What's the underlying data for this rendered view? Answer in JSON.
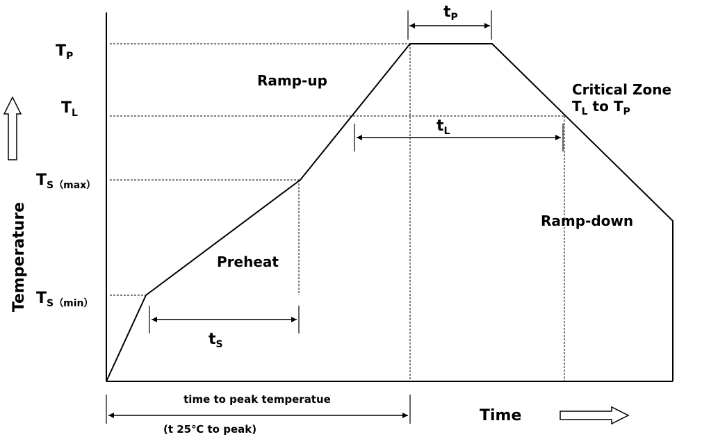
{
  "axes": {
    "y_label": "Temperature",
    "x_label": "Time"
  },
  "levels": {
    "tp": {
      "main": "T",
      "sub": "P"
    },
    "tl": {
      "main": "T",
      "sub": "L"
    },
    "ts_max": {
      "main": "T",
      "sub": "S",
      "suffix": "（max）"
    },
    "ts_min": {
      "main": "T",
      "sub": "S",
      "suffix": "（min）"
    }
  },
  "zones": {
    "ramp_up": "Ramp-up",
    "critical": {
      "line1": "Critical Zone",
      "line2": {
        "a": "T",
        "a_sub": "L",
        "mid": " to ",
        "b": "T",
        "b_sub": "P"
      }
    },
    "ramp_down": "Ramp-down",
    "preheat": "Preheat"
  },
  "durations": {
    "ts": {
      "main": "t",
      "sub": "S"
    },
    "tl": {
      "main": "t",
      "sub": "L"
    },
    "tp": {
      "main": "t",
      "sub": "P"
    },
    "peak": {
      "line1": "time to peak temperatue",
      "line2": "(t 25℃ to peak)"
    }
  }
}
